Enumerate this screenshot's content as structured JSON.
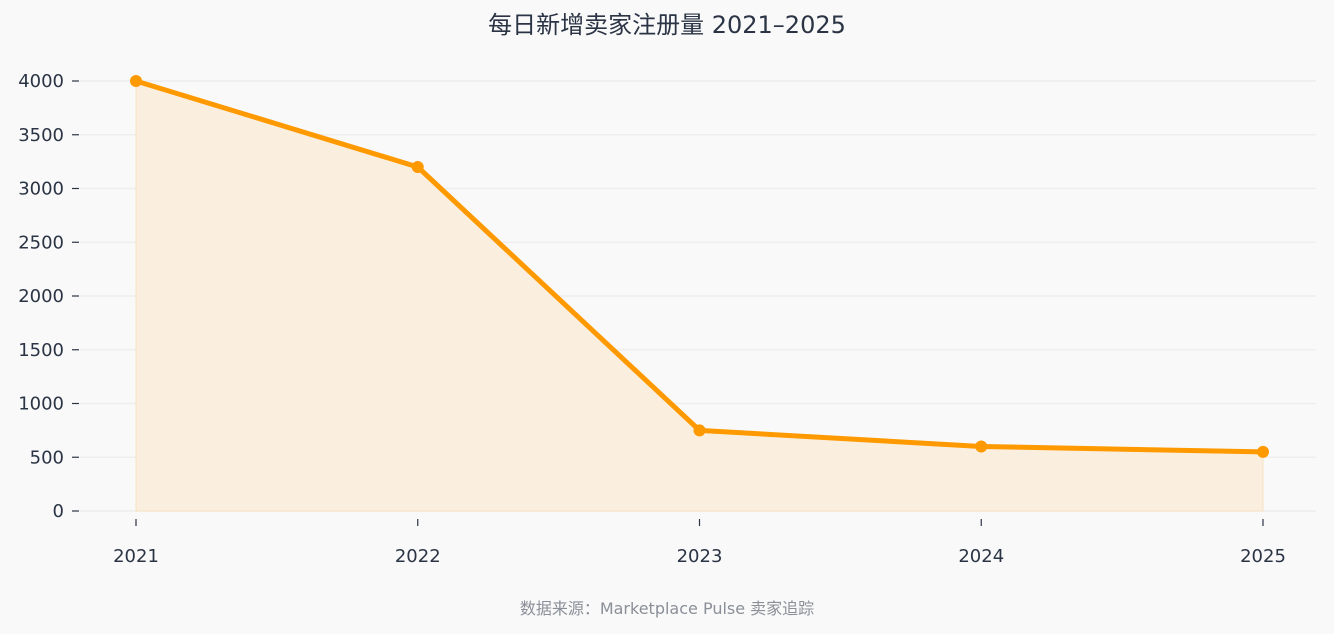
{
  "chart_data": {
    "type": "area",
    "title": "每日新增卖家注册量 2021–2025",
    "footer": "数据来源：Marketplace Pulse 卖家追踪",
    "xlabel": "",
    "ylabel": "",
    "categories": [
      "2021",
      "2022",
      "2023",
      "2024",
      "2025"
    ],
    "series": [
      {
        "values": [
          4000,
          3200,
          750,
          600,
          550
        ]
      }
    ],
    "ylim": [
      0,
      4000
    ],
    "yticks": [
      0,
      500,
      1000,
      1500,
      2000,
      2500,
      3000,
      3500,
      4000
    ],
    "grid": true,
    "legend": "none",
    "colors": {
      "line": "#ff9900",
      "fill": "#faefdf",
      "grid": "#eeeeee",
      "axis": "#2b3445"
    }
  }
}
